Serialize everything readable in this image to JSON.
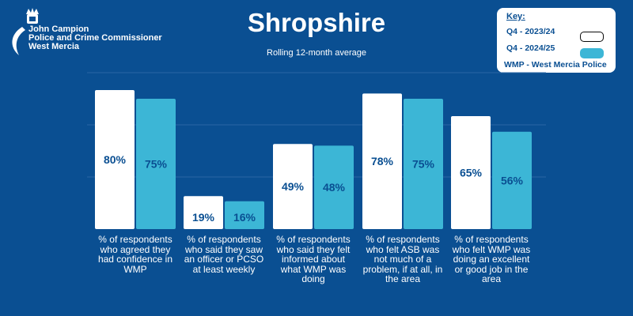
{
  "logo": {
    "line1": "John Campion",
    "line2": "Police and Crime Commissioner",
    "line3": "West Mercia"
  },
  "title": "Shropshire",
  "subtitle": "Rolling 12-month average",
  "key": {
    "title": "Key:",
    "items": [
      {
        "label": "Q4 - 2023/24",
        "color": "#ffffff"
      },
      {
        "label": "Q4 - 2024/25",
        "color": "#3cb6d6"
      }
    ],
    "note": "WMP - West Mercia Police"
  },
  "colors": {
    "background": "#0a4f92",
    "series1": "#ffffff",
    "series2": "#3cb6d6",
    "value_text": "#0a4f92"
  },
  "chart_data": {
    "type": "bar",
    "categories": [
      "% of respondents who agreed they had confidence in WMP",
      "% of respondents who said they saw an officer or PCSO at least weekly",
      "% of respondents who said they felt  informed about what WMP was doing",
      "% of respondents who felt ASB was not much of a problem, if at all, in the area",
      "% of respondents who felt WMP was doing an excellent or good job in the area"
    ],
    "series": [
      {
        "name": "Q4 - 2023/24",
        "values": [
          80,
          19,
          49,
          78,
          65
        ]
      },
      {
        "name": "Q4 - 2024/25",
        "values": [
          75,
          16,
          48,
          75,
          56
        ]
      }
    ],
    "value_labels": [
      [
        "80%",
        "19%",
        "49%",
        "78%",
        "65%"
      ],
      [
        "75%",
        "16%",
        "48%",
        "75%",
        "56%"
      ]
    ],
    "ylim": [
      0,
      100
    ],
    "grid": true,
    "legend": "top-right",
    "title": "Shropshire",
    "subtitle": "Rolling 12-month average",
    "xlabel": "",
    "ylabel": ""
  }
}
